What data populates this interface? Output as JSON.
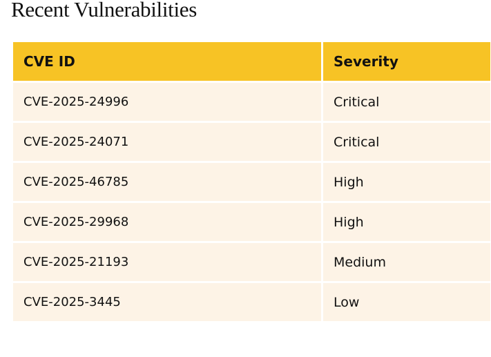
{
  "title": "Recent Vulnerabilities",
  "table": {
    "columns": [
      "CVE ID",
      "Severity"
    ],
    "rows": [
      [
        "CVE-2025-24996",
        "Critical"
      ],
      [
        "CVE-2025-24071",
        "Critical"
      ],
      [
        "CVE-2025-46785",
        "High"
      ],
      [
        "CVE-2025-29968",
        "High"
      ],
      [
        "CVE-2025-21193",
        "Medium"
      ],
      [
        "CVE-2025-3445",
        "Low"
      ]
    ]
  }
}
